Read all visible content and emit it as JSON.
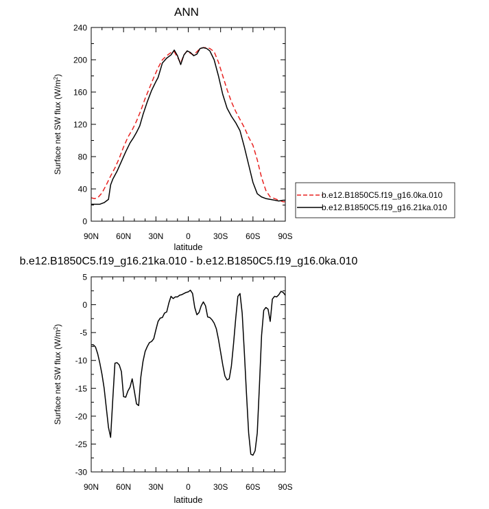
{
  "chart_data": [
    {
      "type": "line",
      "title": "ANN",
      "xlabel": "latitude",
      "ylabel_main": "Surface net SW flux (W/m",
      "ylabel_sup": "2",
      "ylabel_tail": ")",
      "xlim": [
        -90,
        90
      ],
      "ylim": [
        0,
        240
      ],
      "xticks": [
        -90,
        -60,
        -30,
        0,
        30,
        60,
        90
      ],
      "xtick_labels": [
        "90N",
        "60N",
        "30N",
        "0",
        "30S",
        "60S",
        "90S"
      ],
      "yticks": [
        0,
        40,
        80,
        120,
        160,
        200,
        240
      ],
      "ytick_labels": [
        "0",
        "40",
        "80",
        "120",
        "160",
        "200",
        "240"
      ],
      "grid": false,
      "legend": "right",
      "series": [
        {
          "name": "b.e12.B1850C5.f19_g16.0ka.010",
          "color": "#e8211f",
          "dash": "dashed",
          "x": [
            -90,
            -87,
            -84,
            -80,
            -76,
            -72,
            -68,
            -64,
            -60,
            -56,
            -52,
            -48,
            -44,
            -40,
            -36,
            -32,
            -28,
            -24,
            -20,
            -16,
            -13,
            -10,
            -7,
            -4,
            -1,
            2,
            5,
            8,
            11,
            14,
            17,
            20,
            24,
            28,
            32,
            36,
            40,
            44,
            48,
            52,
            56,
            60,
            64,
            68,
            72,
            76,
            80,
            84,
            88,
            90
          ],
          "y": [
            29,
            28,
            29,
            35,
            45,
            56,
            66,
            78,
            92,
            104,
            113,
            124,
            137,
            152,
            165,
            178,
            190,
            200,
            205,
            209,
            210,
            203,
            196,
            206,
            211,
            208,
            206,
            210,
            214,
            215,
            215,
            214,
            210,
            197,
            180,
            163,
            148,
            136,
            126,
            116,
            104,
            94,
            76,
            54,
            38,
            30,
            28,
            26,
            24,
            24
          ]
        },
        {
          "name": "b.e12.B1850C5.f19_g16.21ka.010",
          "color": "#000000",
          "dash": "solid",
          "x": [
            -90,
            -86,
            -82,
            -78,
            -74,
            -72,
            -70,
            -66,
            -62,
            -58,
            -54,
            -51,
            -48,
            -45,
            -42,
            -38,
            -34,
            -30,
            -28,
            -26,
            -24,
            -20,
            -16,
            -13,
            -10,
            -7,
            -4,
            -1,
            2,
            5,
            8,
            11,
            14,
            17,
            20,
            24,
            28,
            32,
            36,
            40,
            44,
            48,
            52,
            56,
            60,
            64,
            68,
            72,
            76,
            80,
            84,
            88,
            90
          ],
          "y": [
            21,
            21,
            21,
            23,
            27,
            45,
            52,
            62,
            74,
            86,
            97,
            103,
            110,
            118,
            132,
            148,
            162,
            173,
            178,
            187,
            196,
            202,
            206,
            212,
            205,
            194,
            206,
            211,
            209,
            205,
            207,
            214,
            215,
            214,
            211,
            200,
            180,
            157,
            140,
            130,
            122,
            112,
            92,
            70,
            48,
            34,
            30,
            28,
            27,
            26,
            25,
            26,
            26
          ]
        }
      ]
    },
    {
      "type": "line",
      "title": "b.e12.B1850C5.f19_g16.21ka.010 - b.e12.B1850C5.f19_g16.0ka.010",
      "xlabel": "latitude",
      "ylabel_main": "Surface net SW flux (W/m",
      "ylabel_sup": "2",
      "ylabel_tail": ")",
      "xlim": [
        -90,
        90
      ],
      "ylim": [
        -30,
        5
      ],
      "xticks": [
        -90,
        -60,
        -30,
        0,
        30,
        60,
        90
      ],
      "xtick_labels": [
        "90N",
        "60N",
        "30N",
        "0",
        "30S",
        "60S",
        "90S"
      ],
      "yticks": [
        -30,
        -25,
        -20,
        -15,
        -10,
        -5,
        0,
        5
      ],
      "ytick_labels": [
        "-30",
        "-25",
        "-20",
        "-15",
        "-10",
        "-5",
        "0",
        "5"
      ],
      "grid": false,
      "series": [
        {
          "color": "#000000",
          "dash": "solid",
          "x": [
            -90,
            -88,
            -86,
            -84,
            -82,
            -80,
            -78,
            -76,
            -74,
            -72,
            -70,
            -68,
            -66,
            -64,
            -62,
            -60,
            -58,
            -56,
            -54,
            -52,
            -50,
            -48,
            -46,
            -44,
            -42,
            -40,
            -38,
            -36,
            -34,
            -32,
            -30,
            -28,
            -26,
            -24,
            -22,
            -20,
            -18,
            -16,
            -14,
            -12,
            -10,
            -8,
            -6,
            -4,
            -2,
            0,
            2,
            4,
            6,
            8,
            10,
            12,
            14,
            16,
            18,
            20,
            22,
            24,
            26,
            28,
            30,
            32,
            34,
            36,
            38,
            40,
            42,
            44,
            46,
            48,
            50,
            52,
            54,
            56,
            58,
            60,
            62,
            64,
            66,
            68,
            70,
            72,
            74,
            76,
            78,
            80,
            82,
            84,
            86,
            88,
            90
          ],
          "y": [
            -7.2,
            -7.2,
            -7.6,
            -8.8,
            -10.5,
            -12.5,
            -15.0,
            -18.5,
            -22.0,
            -23.8,
            -17.0,
            -10.5,
            -10.4,
            -10.8,
            -12.0,
            -16.5,
            -16.6,
            -15.5,
            -14.8,
            -13.3,
            -15.5,
            -17.8,
            -18.1,
            -13.0,
            -10.2,
            -8.4,
            -7.5,
            -6.8,
            -6.6,
            -6.1,
            -4.5,
            -3.0,
            -2.4,
            -2.3,
            -1.5,
            -1.3,
            0.3,
            1.5,
            1.1,
            1.4,
            1.4,
            1.7,
            1.8,
            2.0,
            2.2,
            2.3,
            2.6,
            2.0,
            -0.5,
            -1.8,
            -1.4,
            -0.2,
            0.5,
            -0.2,
            -2.2,
            -2.3,
            -2.7,
            -3.3,
            -4.3,
            -6.2,
            -8.5,
            -10.8,
            -12.8,
            -13.5,
            -13.3,
            -11.0,
            -7.0,
            -2.5,
            1.5,
            2.0,
            -1.5,
            -8.5,
            -16.0,
            -23.0,
            -26.8,
            -27.0,
            -26.2,
            -23.0,
            -14.5,
            -5.5,
            -1.0,
            -0.5,
            -0.8,
            -3.0,
            1.0,
            1.5,
            1.4,
            1.8,
            2.4,
            2.2,
            1.7
          ]
        }
      ]
    }
  ]
}
